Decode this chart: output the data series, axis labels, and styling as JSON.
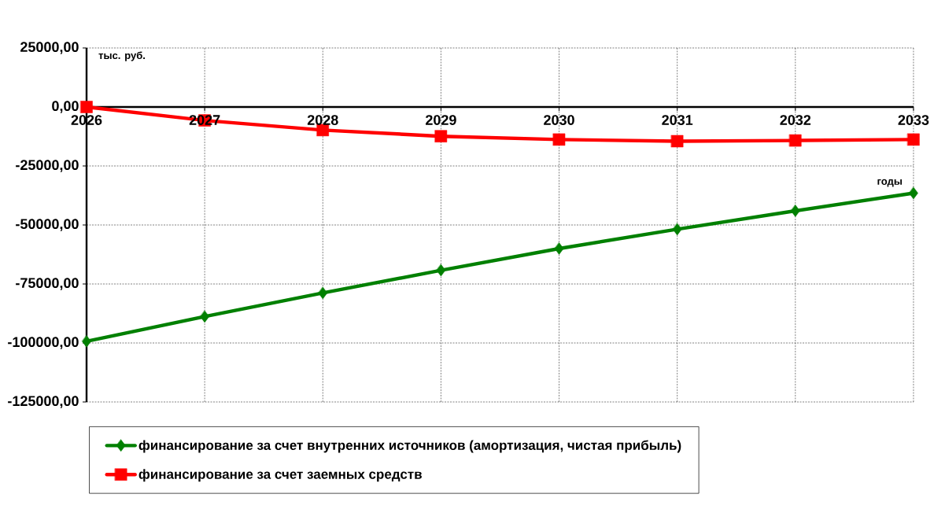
{
  "chart_data": {
    "type": "line",
    "xlabel": "годы",
    "ylabel": "тыс. руб.",
    "categories": [
      "2026",
      "2027",
      "2028",
      "2029",
      "2030",
      "2031",
      "2032",
      "2033"
    ],
    "series": [
      {
        "name": "финансирование за счет внутренних источников (амортизация, чистая прибыль)",
        "color": "#008000",
        "marker": "diamond",
        "values": [
          -99300,
          -88800,
          -78800,
          -69200,
          -60000,
          -51800,
          -44000,
          -36500
        ]
      },
      {
        "name": "финансирование за счет заемных средств",
        "color": "#ff0000",
        "marker": "square",
        "values": [
          0,
          -5700,
          -9800,
          -12400,
          -13800,
          -14500,
          -14200,
          -13800
        ]
      }
    ],
    "ylim": [
      -125000,
      25000
    ],
    "yticks": [
      {
        "value": -125000,
        "label": "-125000,00"
      },
      {
        "value": -100000,
        "label": "-100000,00"
      },
      {
        "value": -75000,
        "label": "-75000,00"
      },
      {
        "value": -50000,
        "label": "-50000,00"
      },
      {
        "value": -25000,
        "label": "-25000,00"
      },
      {
        "value": 0,
        "label": "0,00"
      },
      {
        "value": 25000,
        "label": "25000,00"
      }
    ],
    "grid": true,
    "legend": "bottom left",
    "line_style": "solid"
  }
}
